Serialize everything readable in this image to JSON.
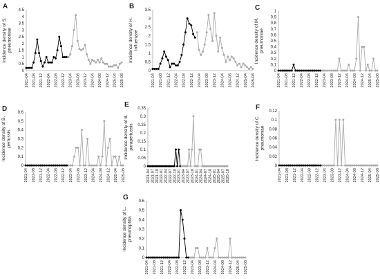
{
  "chart_data": [
    {
      "letter": "A",
      "type": "line",
      "ylabel": "Incidence density of S. pneumoniae",
      "ylim": [
        0,
        4.5
      ],
      "yticks": [
        "0",
        "0.5",
        "1",
        "1.5",
        "2",
        "2.5",
        "3",
        "3.5",
        "4",
        "4.5"
      ],
      "n_points": 53,
      "xtick_labels": [
        "2021-04",
        "2021-08",
        "2021-12",
        "2022-04",
        "2022-08",
        "2022-12",
        "2023-04",
        "2023-08",
        "2023-12",
        "2024-04",
        "2024-08",
        "2024-12",
        "2025-04",
        "2025-08"
      ],
      "split_index": 23,
      "series": [
        {
          "color": "#000000",
          "values": [
            0.2,
            0.2,
            0.2,
            0.2,
            0.6,
            1.3,
            2.3,
            1.3,
            0.7,
            0.3,
            0.6,
            1.0,
            0.6,
            0.6,
            0.6,
            1.0,
            0.9,
            1.5,
            2.5,
            1.8,
            1.0,
            1.0,
            1.0
          ]
        },
        {
          "color": "#aaaaaa",
          "values": [
            1.0,
            1.2,
            1.8,
            3.0,
            4.1,
            2.2,
            1.6,
            1.5,
            1.6,
            1.9,
            1.2,
            0.8,
            0.5,
            0.8,
            0.7,
            0.6,
            0.8,
            0.6,
            0.9,
            0.6,
            0.5,
            0.5,
            0.3,
            0.3,
            0.3,
            0.4,
            0.4,
            0.2,
            0.5,
            0.6
          ]
        }
      ]
    },
    {
      "letter": "B",
      "type": "line",
      "ylabel": "Incidence density of H. influenzae",
      "ylim": [
        0,
        3.5
      ],
      "yticks": [
        "0",
        "0.5",
        "1",
        "1.5",
        "2",
        "2.5",
        "3",
        "3.5"
      ],
      "n_points": 53,
      "xtick_labels": [
        "2021-04",
        "2021-08",
        "2021-12",
        "2022-04",
        "2022-08",
        "2022-12",
        "2023-04",
        "2023-08",
        "2023-12",
        "2024-04",
        "2024-08",
        "2024-12",
        "2025-04",
        "2025-08"
      ],
      "split_index": 23,
      "series": [
        {
          "color": "#000000",
          "values": [
            0.1,
            0.1,
            0.1,
            0.1,
            0.4,
            0.7,
            1.1,
            0.8,
            0.6,
            0.2,
            0.4,
            0.4,
            0.3,
            0.3,
            0.5,
            0.9,
            1.5,
            2.2,
            3.0,
            2.7,
            2.6,
            2.1,
            1.9
          ]
        },
        {
          "color": "#aaaaaa",
          "values": [
            2.2,
            1.2,
            0.9,
            1.1,
            1.5,
            2.2,
            3.2,
            2.4,
            1.7,
            3.3,
            2.0,
            1.1,
            1.9,
            1.3,
            0.9,
            0.5,
            0.8,
            0.6,
            0.8,
            0.7,
            0.5,
            0.3,
            0.4,
            0.2,
            0.4,
            0.3,
            0.2,
            0.1,
            0.2,
            0.1
          ]
        }
      ]
    },
    {
      "letter": "C",
      "type": "line",
      "ylabel": "Incidence density of M. pneumoniae",
      "ylim": [
        0,
        1
      ],
      "yticks": [
        "0",
        "0.1",
        "0.2",
        "0.3",
        "0.4",
        "0.5",
        "0.6",
        "0.7",
        "0.8",
        "0.9",
        "1"
      ],
      "n_points": 53,
      "xtick_labels": [
        "2021-04",
        "2021-08",
        "2021-12",
        "2022-04",
        "2022-08",
        "2022-12",
        "2023-04",
        "2023-08",
        "2023-12",
        "2024-04",
        "2024-08",
        "2024-12",
        "2025-04",
        "2025-08"
      ],
      "split_index": 23,
      "series": [
        {
          "color": "#000000",
          "values": [
            0,
            0,
            0,
            0,
            0,
            0,
            0,
            0,
            0.1,
            0,
            0,
            0,
            0,
            0,
            0,
            0,
            0,
            0,
            0,
            0,
            0,
            0,
            0
          ]
        },
        {
          "color": "#aaaaaa",
          "values": [
            0,
            0,
            0,
            0,
            0,
            0,
            0,
            0,
            0,
            0.2,
            0,
            0,
            0,
            0,
            0.1,
            0,
            0,
            0,
            0.2,
            0.9,
            0,
            0.4,
            0.4,
            0,
            0.1,
            0,
            0,
            0.2,
            0,
            0
          ]
        }
      ]
    },
    {
      "letter": "D",
      "type": "line",
      "ylabel": "Incidence density of B. pertussis",
      "ylim": [
        0,
        0.6
      ],
      "yticks": [
        "0",
        "0.1",
        "0.2",
        "0.3",
        "0.4",
        "0.5",
        "0.6"
      ],
      "n_points": 53,
      "xtick_labels": [
        "2021-04",
        "2021-08",
        "2021-12",
        "2022-04",
        "2022-08",
        "2022-12",
        "2023-04",
        "2023-08",
        "2023-12",
        "2024-04",
        "2024-08",
        "2024-12",
        "2025-04",
        "2025-08"
      ],
      "split_index": 23,
      "series": [
        {
          "color": "#000000",
          "values": [
            0,
            0,
            0,
            0,
            0,
            0,
            0,
            0,
            0,
            0,
            0,
            0,
            0,
            0,
            0,
            0,
            0,
            0,
            0,
            0,
            0,
            0,
            0
          ]
        },
        {
          "color": "#aaaaaa",
          "values": [
            0,
            0,
            0,
            0.1,
            0.2,
            0.2,
            0,
            0.4,
            0,
            0,
            0.3,
            0,
            0,
            0,
            0,
            0,
            0.1,
            0,
            0.1,
            0.5,
            0,
            0.2,
            0.3,
            0,
            0.1,
            0.1,
            0,
            0.1,
            0,
            0
          ]
        }
      ]
    },
    {
      "letter": "E",
      "type": "line",
      "ylabel": "Incidence density of B. parapertussis",
      "ylim": [
        0,
        0.35
      ],
      "yticks": [
        "0",
        "0.05",
        "0.1",
        "0.15",
        "0.2",
        "0.25",
        "0.3",
        "0.35"
      ],
      "n_points": 55,
      "xtick_labels": [
        "2021-04",
        "2021-07",
        "2021-10",
        "2022-01",
        "2022-04",
        "2022-07",
        "2022-10",
        "2023-01",
        "2023-04",
        "2023-07",
        "2023-10",
        "2024-01",
        "2024-04",
        "2024-07",
        "2024-10",
        "2025-01",
        "2025-04",
        "2025-07",
        "2025-10"
      ],
      "split_index": 23,
      "series": [
        {
          "color": "#000000",
          "values": [
            0,
            0,
            0,
            0,
            0,
            0,
            0,
            0,
            0,
            0,
            0,
            0,
            0,
            0,
            0,
            0,
            0,
            0,
            0,
            0.1,
            0,
            0.1,
            0
          ]
        },
        {
          "color": "#aaaaaa",
          "values": [
            0,
            0,
            0,
            0,
            0,
            0.1,
            0,
            0.1,
            0.3,
            0,
            0,
            0,
            0.1,
            0.1,
            0,
            0,
            0,
            0,
            0,
            0,
            0,
            0,
            0,
            0,
            0,
            0,
            0,
            0,
            0,
            0,
            0,
            0
          ]
        }
      ]
    },
    {
      "letter": "F",
      "type": "line",
      "ylabel": "Incidence density of C. pneumoniae",
      "ylim": [
        0,
        0.12
      ],
      "yticks": [
        "0",
        "0.02",
        "0.04",
        "0.06",
        "0.08",
        "0.1",
        "0.12"
      ],
      "n_points": 53,
      "xtick_labels": [
        "2021-04",
        "2021-08",
        "2021-12",
        "2022-04",
        "2022-08",
        "2022-12",
        "2023-04",
        "2023-08",
        "2023-12",
        "2024-04",
        "2024-08",
        "2024-12",
        "2025-04",
        "2025-08"
      ],
      "split_index": 23,
      "series": [
        {
          "color": "#000000",
          "values": [
            0,
            0,
            0,
            0,
            0,
            0,
            0,
            0,
            0,
            0,
            0,
            0,
            0,
            0,
            0,
            0,
            0,
            0,
            0,
            0,
            0,
            0,
            0
          ]
        },
        {
          "color": "#aaaaaa",
          "values": [
            0,
            0,
            0,
            0,
            0,
            0,
            0,
            0.1,
            0,
            0.1,
            0,
            0.1,
            0,
            0,
            0,
            0,
            0,
            0,
            0,
            0,
            0,
            0,
            0,
            0,
            0,
            0,
            0,
            0,
            0,
            0
          ]
        }
      ]
    },
    {
      "letter": "G",
      "type": "line",
      "ylabel": "Incidence density of L. pneumophila",
      "ylim": [
        0,
        0.6
      ],
      "yticks": [
        "0",
        "0.1",
        "0.2",
        "0.3",
        "0.4",
        "0.5",
        "0.6"
      ],
      "n_points": 53,
      "xtick_labels": [
        "2021-04",
        "2021-08",
        "2021-12",
        "2022-04",
        "2022-08",
        "2022-12",
        "2023-04",
        "2023-08",
        "2023-12",
        "2024-04",
        "2024-08",
        "2024-12",
        "2025-04",
        "2025-08"
      ],
      "split_index": 23,
      "series": [
        {
          "color": "#000000",
          "values": [
            0,
            0,
            0,
            0,
            0,
            0,
            0,
            0,
            0,
            0,
            0,
            0,
            0,
            0,
            0,
            0,
            0,
            0,
            0.5,
            0.4,
            0.2,
            0,
            0
          ]
        },
        {
          "color": "#aaaaaa",
          "values": [
            0,
            0,
            0,
            0.1,
            0.1,
            0,
            0,
            0,
            0,
            0.1,
            0,
            0,
            0,
            0.1,
            0.2,
            0,
            0,
            0,
            0,
            0,
            0,
            0.2,
            0,
            0,
            0,
            0,
            0,
            0,
            0,
            0
          ]
        }
      ]
    }
  ]
}
